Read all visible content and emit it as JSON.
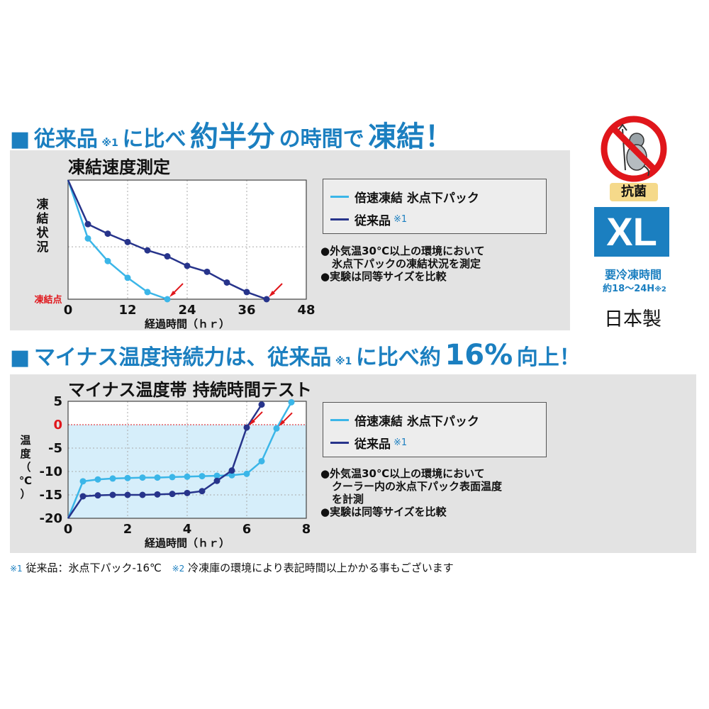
{
  "heading1": {
    "marker": "■",
    "p1": "従来品",
    "ref": "※1",
    "p2": "に比べ",
    "p3": "約半分",
    "p4": "の時間で",
    "p5": "凍結！"
  },
  "heading2": {
    "marker": "■",
    "p1": "マイナス温度持続力は、従来品",
    "ref": "※1",
    "p2": "に比べ約",
    "p3": "16%",
    "p4": "向上！"
  },
  "badge": {
    "antibacterial": "抗菌",
    "size": "XL",
    "freeze_label": "要冷凍時間",
    "freeze_time": "約18〜24H",
    "freeze_ref": "※2",
    "origin": "日本製",
    "colors": {
      "size_bg": "#1b7fc0",
      "label_bg": "#f5d98a",
      "prohibit": "#e0161b"
    }
  },
  "legend": {
    "fast_label": "倍速凍結 氷点下パック",
    "conventional_label": "従来品",
    "conventional_ref": "※1",
    "fast_color": "#3bb6e8",
    "conventional_color": "#27348b"
  },
  "notes1": [
    "●外気温30℃以上の環境において",
    "氷点下パックの凍結状況を測定",
    "●実験は同等サイズを比較"
  ],
  "notes2": [
    "●外気温30℃以上の環境において",
    "クーラー内の氷点下パック表面温度",
    "を計測",
    "●実験は同等サイズを比較"
  ],
  "footnote": {
    "ref1": "※1",
    "text1": "従来品：氷点下パック-16℃",
    "ref2": "※2",
    "text2": "冷凍庫の環境により表記時間以上かかる事もございます"
  },
  "chart_data": [
    {
      "type": "line",
      "title": "凍結速度測定",
      "xlabel": "経過時間（ｈｒ）",
      "ylabel": "凍結状況",
      "threshold_label": "凍結点",
      "xlim": [
        0,
        48
      ],
      "xticks": [
        0,
        12,
        24,
        36,
        48
      ],
      "ylim": [
        0,
        10
      ],
      "threshold": 0,
      "grid": true,
      "series": [
        {
          "name": "倍速凍結 氷点下パック",
          "color": "#3bb6e8",
          "x": [
            0,
            4,
            8,
            12,
            16,
            20
          ],
          "y": [
            10,
            5.1,
            3.2,
            1.8,
            0.6,
            0
          ]
        },
        {
          "name": "従来品",
          "color": "#27348b",
          "x": [
            0,
            4,
            8,
            12,
            16,
            20,
            24,
            28,
            32,
            36,
            40
          ],
          "y": [
            10,
            6.3,
            5.5,
            4.8,
            4.1,
            3.6,
            2.8,
            2.3,
            1.4,
            0.6,
            0
          ]
        }
      ],
      "arrows_at_x": [
        20,
        40
      ]
    },
    {
      "type": "line",
      "title": "マイナス温度帯 持続時間テスト",
      "xlabel": "経過時間（ｈｒ）",
      "ylabel": "温度（℃）",
      "xlim": [
        0,
        8
      ],
      "xticks": [
        0,
        2,
        4,
        6,
        8
      ],
      "ylim": [
        -20,
        5
      ],
      "yticks": [
        5,
        0,
        -5,
        -10,
        -15,
        -20
      ],
      "threshold": 0,
      "grid": true,
      "series": [
        {
          "name": "倍速凍結 氷点下パック",
          "color": "#3bb6e8",
          "x": [
            0,
            0.5,
            1,
            1.5,
            2,
            2.5,
            3,
            3.5,
            4,
            4.5,
            5,
            5.5,
            6,
            6.5,
            7,
            7.5
          ],
          "y": [
            -20,
            -12.1,
            -11.7,
            -11.5,
            -11.4,
            -11.3,
            -11.3,
            -11.2,
            -11.1,
            -11.0,
            -10.9,
            -10.8,
            -10.5,
            -7.8,
            -0.8,
            4.8
          ]
        },
        {
          "name": "従来品",
          "color": "#27348b",
          "x": [
            0,
            0.5,
            1,
            1.5,
            2,
            2.5,
            3,
            3.5,
            4,
            4.5,
            5,
            5.5,
            6,
            6.5
          ],
          "y": [
            -20,
            -15.3,
            -15.1,
            -15.0,
            -15.0,
            -15.0,
            -14.9,
            -14.8,
            -14.6,
            -14.2,
            -12.0,
            -9.8,
            -0.6,
            4.3
          ]
        }
      ],
      "arrows_at_x": [
        6,
        7
      ]
    }
  ]
}
